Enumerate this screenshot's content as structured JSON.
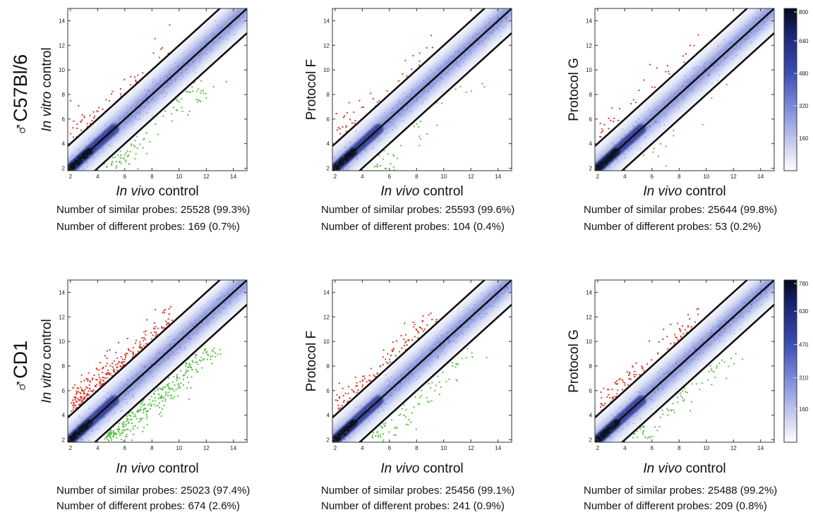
{
  "figure": {
    "row_labels": [
      {
        "symbol": "♂",
        "name": "C57Bl/6"
      },
      {
        "symbol": "♂",
        "name": "CD1"
      }
    ],
    "colorbars": [
      {
        "ticks": [
          800,
          640,
          480,
          320,
          160
        ]
      },
      {
        "ticks": [
          780,
          630,
          470,
          310,
          160
        ]
      }
    ]
  },
  "chart_data": [
    {
      "type": "scatter",
      "row": 0,
      "col": 0,
      "xlabel": {
        "italic": "In vivo",
        "rest": " control"
      },
      "ylabel": {
        "italic": "In vitro",
        "rest": " control"
      },
      "xlim": [
        1.8,
        15
      ],
      "ylim": [
        1.8,
        15
      ],
      "xticks": [
        2,
        4,
        6,
        8,
        10,
        12,
        14
      ],
      "yticks": [
        2,
        4,
        6,
        8,
        10,
        12,
        14
      ],
      "lines": [
        {
          "intercept": 2
        },
        {
          "intercept": 0
        },
        {
          "intercept": -2
        }
      ],
      "density_series": {
        "name": "similar probes",
        "count": 25528,
        "percent": "99.3%"
      },
      "up_series": {
        "name": "different probes (up)",
        "color": "#d93a2b",
        "n": 55,
        "seed": 11
      },
      "down_series": {
        "name": "different probes (down)",
        "color": "#5cbf4a",
        "n": 90,
        "seed": 12
      },
      "stats": {
        "similar_text": "Number of similar probes: 25528 (99.3%)",
        "different_text": "Number of different probes: 169 (0.7%)"
      }
    },
    {
      "type": "scatter",
      "row": 0,
      "col": 1,
      "xlabel": {
        "italic": "In vivo",
        "rest": " control"
      },
      "ylabel": {
        "italic": "",
        "rest": "Protocol F"
      },
      "xlim": [
        1.8,
        15
      ],
      "ylim": [
        1.8,
        15
      ],
      "xticks": [
        2,
        4,
        6,
        8,
        10,
        12,
        14
      ],
      "yticks": [
        2,
        4,
        6,
        8,
        10,
        12,
        14
      ],
      "lines": [
        {
          "intercept": 2
        },
        {
          "intercept": 0
        },
        {
          "intercept": -2
        }
      ],
      "density_series": {
        "name": "similar probes",
        "count": 25593,
        "percent": "99.6%"
      },
      "up_series": {
        "name": "different probes (up)",
        "color": "#d93a2b",
        "n": 40,
        "seed": 21
      },
      "down_series": {
        "name": "different probes (down)",
        "color": "#5cbf4a",
        "n": 35,
        "seed": 22
      },
      "stats": {
        "similar_text": "Number of similar probes: 25593 (99.6%)",
        "different_text": "Number of different probes: 104 (0.4%)"
      }
    },
    {
      "type": "scatter",
      "row": 0,
      "col": 2,
      "xlabel": {
        "italic": "In vivo",
        "rest": " control"
      },
      "ylabel": {
        "italic": "",
        "rest": "Protocol G"
      },
      "xlim": [
        1.8,
        15
      ],
      "ylim": [
        1.8,
        15
      ],
      "xticks": [
        2,
        4,
        6,
        8,
        10,
        12,
        14
      ],
      "yticks": [
        2,
        4,
        6,
        8,
        10,
        12,
        14
      ],
      "lines": [
        {
          "intercept": 2
        },
        {
          "intercept": 0
        },
        {
          "intercept": -2
        }
      ],
      "density_series": {
        "name": "similar probes",
        "count": 25644,
        "percent": "99.8%"
      },
      "up_series": {
        "name": "different probes (up)",
        "color": "#d93a2b",
        "n": 35,
        "seed": 31
      },
      "down_series": {
        "name": "different probes (down)",
        "color": "#5cbf4a",
        "n": 12,
        "seed": 32
      },
      "stats": {
        "similar_text": "Number of similar probes: 25644 (99.8%)",
        "different_text": "Number of different probes: 53 (0.2%)"
      }
    },
    {
      "type": "scatter",
      "row": 1,
      "col": 0,
      "xlabel": {
        "italic": "In vivo",
        "rest": " control"
      },
      "ylabel": {
        "italic": "In vitro",
        "rest": " control"
      },
      "xlim": [
        1.8,
        15
      ],
      "ylim": [
        1.8,
        15
      ],
      "xticks": [
        2,
        4,
        6,
        8,
        10,
        12,
        14
      ],
      "yticks": [
        2,
        4,
        6,
        8,
        10,
        12,
        14
      ],
      "lines": [
        {
          "intercept": 2
        },
        {
          "intercept": 0
        },
        {
          "intercept": -2
        }
      ],
      "density_series": {
        "name": "similar probes",
        "count": 25023,
        "percent": "97.4%"
      },
      "up_series": {
        "name": "different probes (up)",
        "color": "#d93a2b",
        "n": 260,
        "seed": 41
      },
      "down_series": {
        "name": "different probes (down)",
        "color": "#5cbf4a",
        "n": 300,
        "seed": 42
      },
      "stats": {
        "similar_text": "Number of similar probes: 25023 (97.4%)",
        "different_text": "Number of different probes: 674 (2.6%)"
      }
    },
    {
      "type": "scatter",
      "row": 1,
      "col": 1,
      "xlabel": {
        "italic": "In vivo",
        "rest": " control"
      },
      "ylabel": {
        "italic": "",
        "rest": "Protocol F"
      },
      "xlim": [
        1.8,
        15
      ],
      "ylim": [
        1.8,
        15
      ],
      "xticks": [
        2,
        4,
        6,
        8,
        10,
        12,
        14
      ],
      "yticks": [
        2,
        4,
        6,
        8,
        10,
        12,
        14
      ],
      "lines": [
        {
          "intercept": 2
        },
        {
          "intercept": 0
        },
        {
          "intercept": -2
        }
      ],
      "density_series": {
        "name": "similar probes",
        "count": 25456,
        "percent": "99.1%"
      },
      "up_series": {
        "name": "different probes (up)",
        "color": "#d93a2b",
        "n": 110,
        "seed": 51
      },
      "down_series": {
        "name": "different probes (down)",
        "color": "#5cbf4a",
        "n": 80,
        "seed": 52
      },
      "stats": {
        "similar_text": "Number of similar probes: 25456 (99.1%)",
        "different_text": "Number of different probes: 241 (0.9%)"
      }
    },
    {
      "type": "scatter",
      "row": 1,
      "col": 2,
      "xlabel": {
        "italic": "In vivo",
        "rest": " control"
      },
      "ylabel": {
        "italic": "",
        "rest": "Protocol G"
      },
      "xlim": [
        1.8,
        15
      ],
      "ylim": [
        1.8,
        15
      ],
      "xticks": [
        2,
        4,
        6,
        8,
        10,
        12,
        14
      ],
      "yticks": [
        2,
        4,
        6,
        8,
        10,
        12,
        14
      ],
      "lines": [
        {
          "intercept": 2
        },
        {
          "intercept": 0
        },
        {
          "intercept": -2
        }
      ],
      "density_series": {
        "name": "similar probes",
        "count": 25488,
        "percent": "99.2%"
      },
      "up_series": {
        "name": "different probes (up)",
        "color": "#d93a2b",
        "n": 100,
        "seed": 61
      },
      "down_series": {
        "name": "different probes (down)",
        "color": "#5cbf4a",
        "n": 70,
        "seed": 62
      },
      "stats": {
        "similar_text": "Number of similar probes: 25488 (99.2%)",
        "different_text": "Number of different probes: 209 (0.8%)"
      }
    }
  ]
}
